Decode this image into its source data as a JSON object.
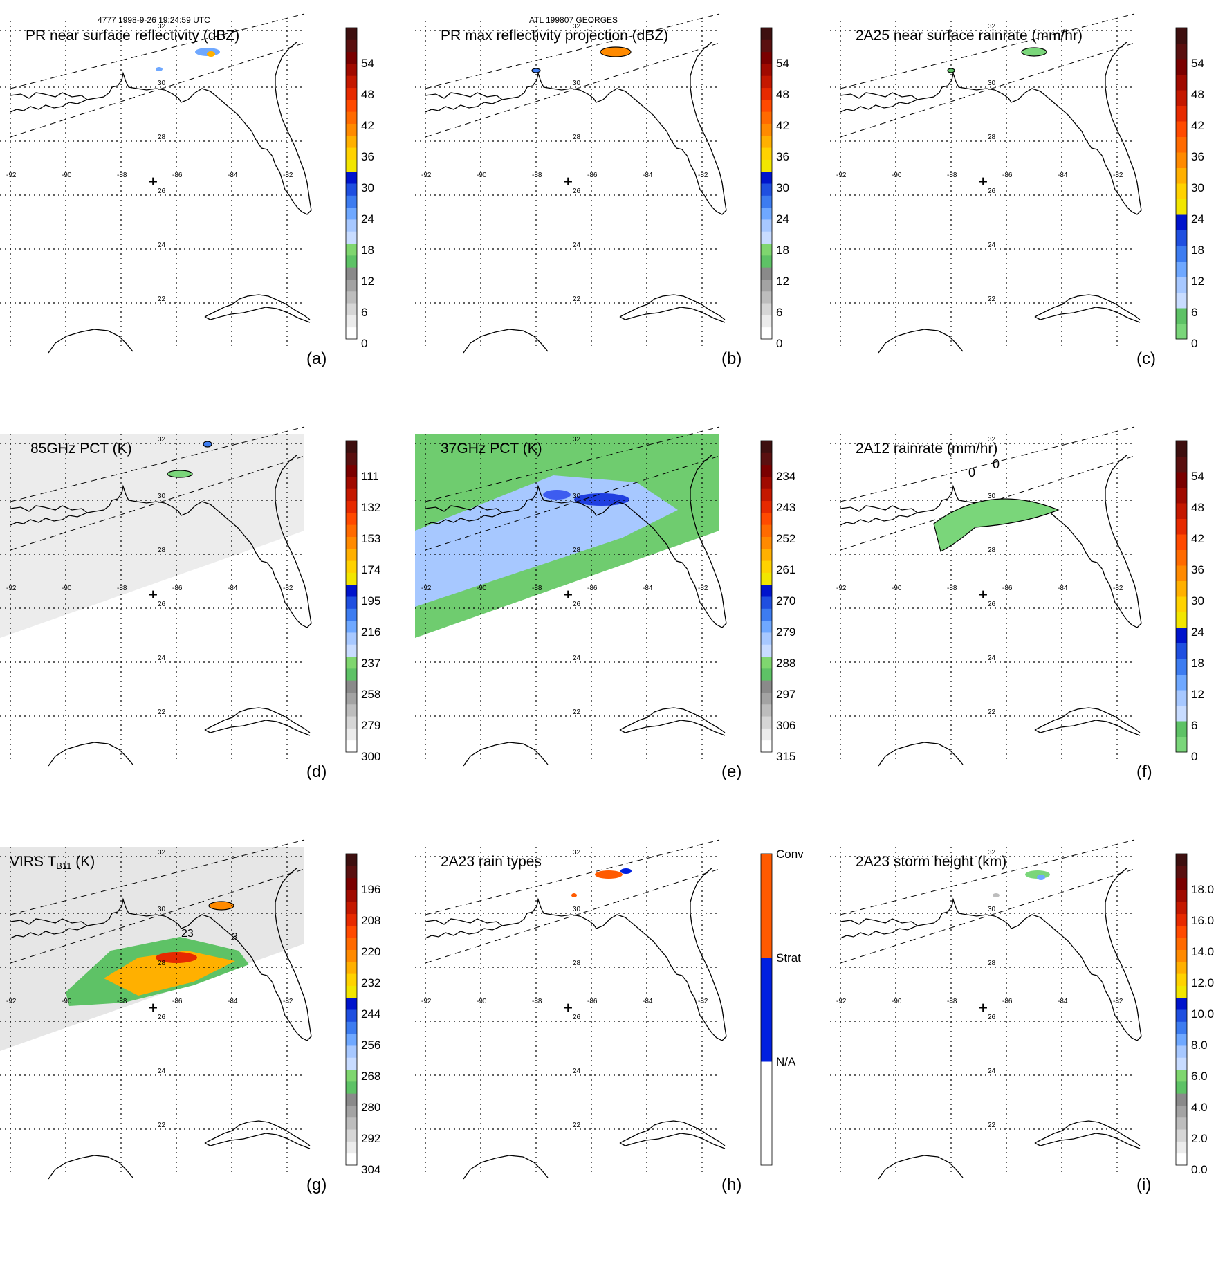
{
  "header": {
    "left": "4777 1998-9-26 19:24:59 UTC",
    "center": "ATL 199807 GEORGES"
  },
  "map": {
    "lon_labels": [
      "-92",
      "-90",
      "-88",
      "-86",
      "-84",
      "-82"
    ],
    "lat_labels": [
      "32",
      "30",
      "28",
      "26",
      "24",
      "22"
    ],
    "center_marker": "+"
  },
  "colors": {
    "reflectivity_scale": [
      "#ffffff",
      "#ececec",
      "#d6d6d6",
      "#bdbdbd",
      "#a3a3a3",
      "#8a8a8a",
      "#5ec266",
      "#7fd66f",
      "#c8dcff",
      "#a7c8ff",
      "#6fa8ff",
      "#3d7cf0",
      "#1f4fe0",
      "#0014cc",
      "#f2e600",
      "#ffd200",
      "#ffb000",
      "#ff8a00",
      "#ff6a00",
      "#ff4a00",
      "#e62a00",
      "#c41800",
      "#a00a00",
      "#7a0000",
      "#5a1010",
      "#3e1010"
    ],
    "rainrate_scale": [
      "#7ad67a",
      "#5ec266",
      "#c8dcff",
      "#a7c8ff",
      "#6fa8ff",
      "#3d7cf0",
      "#1f4fe0",
      "#0014cc",
      "#f2e600",
      "#ffd200",
      "#ffb000",
      "#ff8a00",
      "#ff6a00",
      "#ff4a00",
      "#e62a00",
      "#c41800",
      "#a00a00",
      "#7a0000",
      "#5a1010",
      "#3e1010"
    ],
    "raintype_scale": [
      "#ffffff",
      "#0020e0",
      "#ff5a00"
    ],
    "coast": "#000000",
    "grid": "#000000"
  },
  "panels": [
    {
      "id": "a",
      "title": "PR near surface reflectivity (dBZ)",
      "label": "(a)",
      "colorbar_ticks": [
        "54",
        "48",
        "42",
        "36",
        "30",
        "24",
        "18",
        "12",
        "6",
        "0"
      ],
      "scale": "reflectivity_scale"
    },
    {
      "id": "b",
      "title": "PR max reflectivity projection (dBZ)",
      "label": "(b)",
      "colorbar_ticks": [
        "54",
        "48",
        "42",
        "36",
        "30",
        "24",
        "18",
        "12",
        "6",
        "0"
      ],
      "scale": "reflectivity_scale"
    },
    {
      "id": "c",
      "title": "2A25 near surface rainrate (mm/hr)",
      "label": "(c)",
      "colorbar_ticks": [
        "54",
        "48",
        "42",
        "36",
        "30",
        "24",
        "18",
        "12",
        "6",
        "0"
      ],
      "scale": "rainrate_scale"
    },
    {
      "id": "d",
      "title": "85GHz PCT (K)",
      "label": "(d)",
      "colorbar_ticks": [
        "111",
        "132",
        "153",
        "174",
        "195",
        "216",
        "237",
        "258",
        "279",
        "300"
      ],
      "scale": "reflectivity_scale"
    },
    {
      "id": "e",
      "title": "37GHz PCT (K)",
      "label": "(e)",
      "colorbar_ticks": [
        "234",
        "243",
        "252",
        "261",
        "270",
        "279",
        "288",
        "297",
        "306",
        "315"
      ],
      "scale": "reflectivity_scale"
    },
    {
      "id": "f",
      "title": "2A12 rainrate (mm/hr)",
      "label": "(f)",
      "colorbar_ticks": [
        "54",
        "48",
        "42",
        "36",
        "30",
        "24",
        "18",
        "12",
        "6",
        "0"
      ],
      "scale": "rainrate_scale",
      "contour_labels": [
        "0",
        "0"
      ]
    },
    {
      "id": "g",
      "title_main": "VIRS T",
      "title_sub": "B11",
      "title_end": " (K)",
      "label": "(g)",
      "colorbar_ticks": [
        "196",
        "208",
        "220",
        "232",
        "244",
        "256",
        "268",
        "280",
        "292",
        "304"
      ],
      "scale": "reflectivity_scale",
      "contour_labels": [
        "23",
        "3"
      ]
    },
    {
      "id": "h",
      "title": "2A23 rain types",
      "label": "(h)",
      "colorbar_ticks": [
        "Conv",
        "Strat",
        "N/A"
      ],
      "scale": "raintype_scale"
    },
    {
      "id": "i",
      "title": "2A23 storm height (km)",
      "label": "(i)",
      "colorbar_ticks": [
        "18.0",
        "16.0",
        "14.0",
        "12.0",
        "10.0",
        "8.0",
        "6.0",
        "4.0",
        "2.0",
        "0.0"
      ],
      "scale": "reflectivity_scale"
    }
  ]
}
